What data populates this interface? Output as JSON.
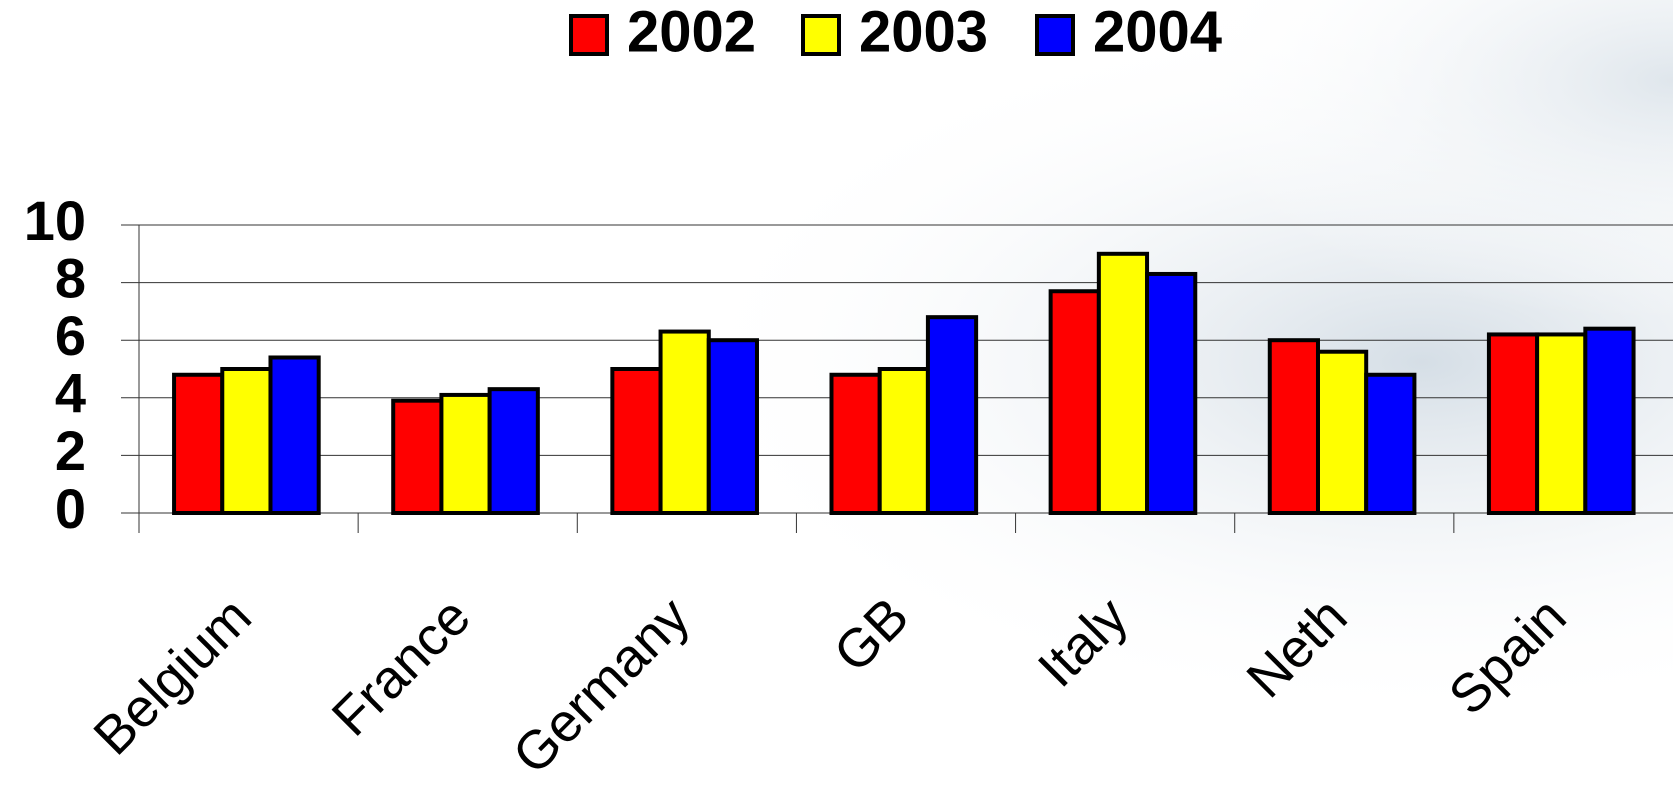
{
  "chart_data": {
    "type": "bar",
    "categories": [
      "Belgium",
      "France",
      "Germany",
      "GB",
      "Italy",
      "Neth",
      "Spain"
    ],
    "series": [
      {
        "name": "2002",
        "color": "#ff0000",
        "values": [
          4.8,
          3.9,
          5.0,
          4.8,
          7.7,
          6.0,
          6.2
        ]
      },
      {
        "name": "2003",
        "color": "#ffff00",
        "values": [
          5.0,
          4.1,
          6.3,
          5.0,
          9.0,
          5.6,
          6.2
        ]
      },
      {
        "name": "2004",
        "color": "#0000ff",
        "values": [
          5.4,
          4.3,
          6.0,
          6.8,
          8.3,
          4.8,
          6.4
        ]
      }
    ],
    "ylim": [
      0,
      10
    ],
    "yticks": [
      0,
      2,
      4,
      6,
      8,
      10
    ],
    "grid": true,
    "legend": "top"
  }
}
